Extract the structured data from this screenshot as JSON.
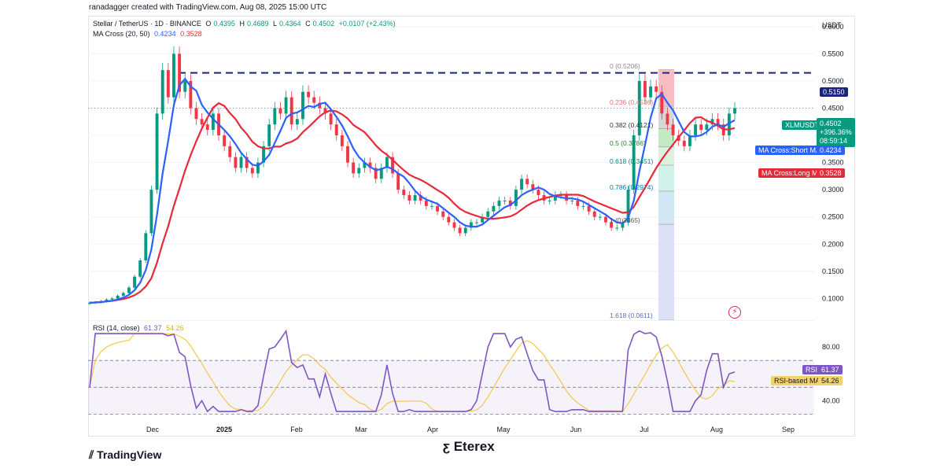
{
  "credit": "ranadagger created with TradingView.com, Aug 08, 2025 15:00 UTC",
  "header": {
    "symbol": "Stellar / TetherUS · 1D · BINANCE",
    "open_label": "O",
    "open": "0.4395",
    "high_label": "H",
    "high": "0.4689",
    "low_label": "L",
    "low": "0.4364",
    "close_label": "C",
    "close": "0.4502",
    "change": "+0.0107 (+2.43%)",
    "ma_label": "MA Cross (20, 50)",
    "ma_short": "0.4234",
    "ma_long": "0.3528"
  },
  "rsi_header": {
    "label": "RSI (14, close)",
    "rsi": "61.37",
    "rsi_ma": "54.26"
  },
  "axis": {
    "currency": "USDT"
  },
  "tags": {
    "resistance": "0.5150",
    "symbol_tag": "XLMUSDT",
    "price": "0.4502",
    "pct": "+396.36%",
    "countdown": "08:59:14",
    "short_ma_label": "MA Cross:Short MA",
    "short_ma_value": "0.4234",
    "long_ma_label": "MA Cross:Long MA",
    "long_ma_value": "0.3528",
    "rsi_label": "RSI",
    "rsi_value": "61.37",
    "rsi_ma_label": "RSI-based MA",
    "rsi_ma_value": "54.26"
  },
  "fib_levels": [
    {
      "label": "0 (0.5206)",
      "value": 0.5206
    },
    {
      "label": "0.236 (0.4536)",
      "value": 0.4536
    },
    {
      "label": "0.382 (0.4121)",
      "value": 0.4121
    },
    {
      "label": "0.5 (0.3786)",
      "value": 0.3786
    },
    {
      "label": "0.618 (0.3451)",
      "value": 0.3451
    },
    {
      "label": "0.786 (0.2974)",
      "value": 0.2974
    },
    {
      "label": "1 (0.2365)",
      "value": 0.2365
    },
    {
      "label": "1.618 (0.0611)",
      "value": 0.0611
    }
  ],
  "brand": {
    "tradingview": "TradingView",
    "eterex": "Eterex"
  },
  "colors": {
    "up": "#089981",
    "down": "#f23645",
    "short_ma": "#2962ff",
    "long_ma": "#e8293a",
    "rsi": "#7e57c2",
    "rsi_ma": "#f2c94c",
    "resistance": "#1a237e"
  },
  "chart_data": [
    {
      "type": "candlestick",
      "title": "Stellar / TetherUS · 1D · BINANCE",
      "xlabel": "",
      "ylabel": "USDT",
      "x_ticks": [
        "Dec",
        "2025",
        "Feb",
        "Mar",
        "Apr",
        "May",
        "Jun",
        "Jul",
        "Aug",
        "Sep"
      ],
      "y_ticks": [
        0.1,
        0.15,
        0.2,
        0.25,
        0.3,
        0.35,
        0.4,
        0.45,
        0.5,
        0.55,
        0.6
      ],
      "ylim": [
        0.06,
        0.62
      ],
      "horizontal_line": 0.515,
      "close_series": [
        0.092,
        0.093,
        0.095,
        0.098,
        0.1,
        0.105,
        0.11,
        0.12,
        0.14,
        0.17,
        0.22,
        0.3,
        0.44,
        0.52,
        0.47,
        0.55,
        0.48,
        0.5,
        0.45,
        0.43,
        0.42,
        0.41,
        0.44,
        0.4,
        0.38,
        0.36,
        0.34,
        0.36,
        0.34,
        0.33,
        0.35,
        0.38,
        0.42,
        0.45,
        0.44,
        0.47,
        0.42,
        0.43,
        0.48,
        0.47,
        0.46,
        0.45,
        0.44,
        0.42,
        0.4,
        0.38,
        0.35,
        0.33,
        0.34,
        0.35,
        0.34,
        0.32,
        0.34,
        0.36,
        0.33,
        0.3,
        0.29,
        0.28,
        0.29,
        0.28,
        0.27,
        0.27,
        0.26,
        0.25,
        0.24,
        0.23,
        0.22,
        0.23,
        0.24,
        0.24,
        0.25,
        0.26,
        0.27,
        0.28,
        0.28,
        0.27,
        0.3,
        0.32,
        0.31,
        0.3,
        0.29,
        0.28,
        0.28,
        0.29,
        0.29,
        0.28,
        0.28,
        0.27,
        0.27,
        0.26,
        0.25,
        0.25,
        0.24,
        0.23,
        0.23,
        0.24,
        0.3,
        0.4,
        0.5,
        0.47,
        0.49,
        0.48,
        0.44,
        0.42,
        0.4,
        0.39,
        0.38,
        0.4,
        0.42,
        0.41,
        0.42,
        0.43,
        0.42,
        0.4,
        0.44,
        0.45
      ],
      "series": [
        {
          "name": "MA Cross:Short MA",
          "last": 0.4234
        },
        {
          "name": "MA Cross:Long MA",
          "last": 0.3528
        }
      ]
    },
    {
      "type": "line",
      "title": "RSI (14, close)",
      "y_ticks": [
        40.0,
        80.0
      ],
      "ylim": [
        25,
        100
      ],
      "band": [
        30,
        70
      ],
      "series": [
        {
          "name": "RSI",
          "last": 61.37
        },
        {
          "name": "RSI-based MA",
          "last": 54.26
        }
      ]
    }
  ]
}
